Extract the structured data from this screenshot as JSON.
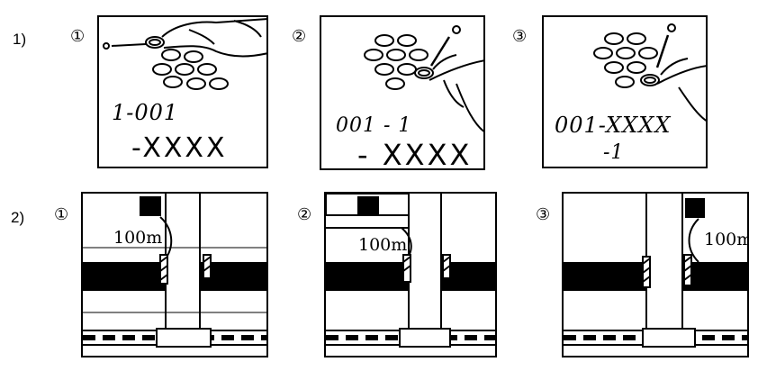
{
  "rows": {
    "row1_label": "1)",
    "row2_label": "2)"
  },
  "panel_numbers": {
    "n1": "①",
    "n2": "②",
    "n3": "③"
  },
  "row1": {
    "p1": {
      "line1": "1-001",
      "line2": "-XXXX"
    },
    "p2": {
      "line1": "001 - 1",
      "line2": "- XXXX"
    },
    "p3": {
      "line1": "001-XXXX",
      "line2": "-1"
    }
  },
  "row2": {
    "distance_label": "100m"
  }
}
